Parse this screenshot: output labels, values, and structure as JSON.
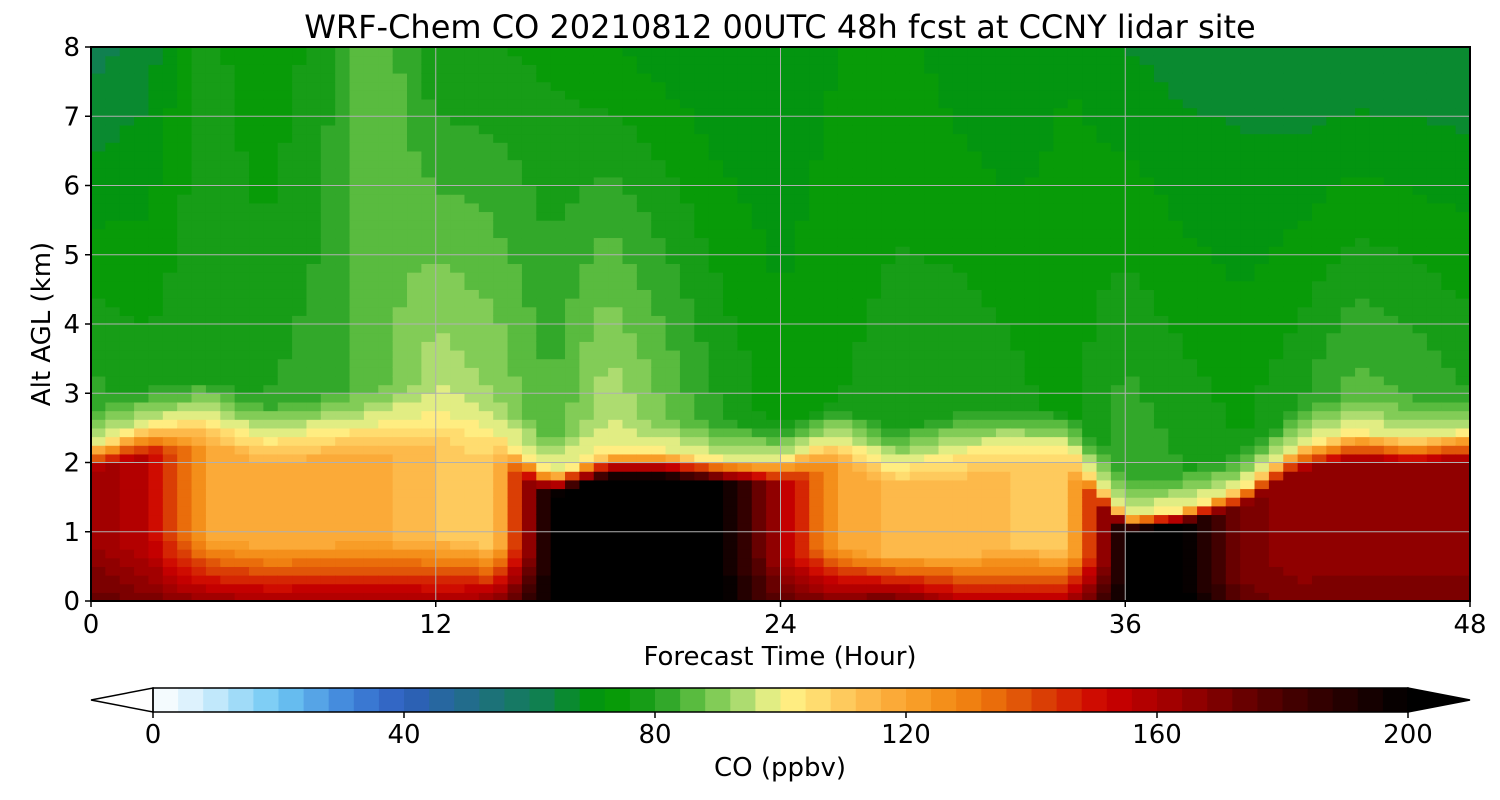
{
  "chart_data": {
    "type": "heatmap",
    "title": "WRF-Chem CO  20210812 00UTC 48h fcst at CCNY lidar site",
    "xlabel": "Forecast Time (Hour)",
    "ylabel": "Alt AGL (km)",
    "xlim": [
      0,
      48
    ],
    "ylim": [
      0,
      8
    ],
    "xticks": [
      "0",
      "12",
      "24",
      "36",
      "48"
    ],
    "yticks": [
      "0",
      "1",
      "2",
      "3",
      "4",
      "5",
      "6",
      "7",
      "8"
    ],
    "grid": true,
    "x_hours": [
      0,
      2,
      4,
      6,
      8,
      10,
      12,
      14,
      16,
      18,
      20,
      22,
      24,
      26,
      28,
      30,
      32,
      34,
      36,
      38,
      40,
      42,
      44,
      46,
      48
    ],
    "y_km": [
      0,
      0.25,
      0.5,
      0.75,
      1,
      1.25,
      1.5,
      1.75,
      2,
      2.25,
      2.5,
      3,
      3.5,
      4,
      4.5,
      5,
      5.5,
      6,
      6.5,
      7,
      7.5,
      8
    ],
    "profile": {
      "pbl_top_km": [
        2.2,
        2.5,
        2.6,
        2.3,
        2.4,
        2.5,
        2.6,
        2.4,
        1.8,
        2.1,
        2.1,
        2.0,
        2.0,
        2.3,
        1.9,
        2.1,
        2.2,
        2.2,
        1.2,
        1.3,
        1.6,
        2.2,
        2.4,
        2.3,
        2.4
      ],
      "pbl_co_ppbv": [
        165,
        155,
        120,
        118,
        118,
        118,
        112,
        108,
        200,
        200,
        200,
        200,
        160,
        120,
        115,
        112,
        112,
        110,
        200,
        200,
        170,
        165,
        165,
        165,
        165
      ],
      "surface_co_ppbv": [
        175,
        170,
        165,
        162,
        162,
        162,
        162,
        165,
        200,
        205,
        205,
        200,
        175,
        170,
        175,
        160,
        158,
        160,
        200,
        205,
        175,
        170,
        170,
        170,
        170
      ],
      "free_trop_low_ppbv": [
        82,
        78,
        80,
        80,
        82,
        86,
        95,
        92,
        85,
        96,
        88,
        80,
        74,
        76,
        78,
        80,
        78,
        74,
        84,
        80,
        76,
        80,
        86,
        84,
        80
      ],
      "free_trop_high_ppbv": [
        62,
        66,
        78,
        72,
        78,
        88,
        76,
        76,
        75,
        72,
        70,
        68,
        68,
        72,
        74,
        70,
        68,
        72,
        68,
        66,
        66,
        64,
        64,
        64,
        64
      ]
    },
    "colorbar": {
      "label": "CO  (ppbv)",
      "ticks": [
        "0",
        "40",
        "80",
        "120",
        "160",
        "200"
      ],
      "min": 0,
      "max": 200,
      "step": 4,
      "extend": "both",
      "colors": [
        [
          0,
          "#ffffff"
        ],
        [
          8,
          "#d2eefc"
        ],
        [
          20,
          "#6ec8f4"
        ],
        [
          32,
          "#3d80d8"
        ],
        [
          40,
          "#2f5ebe"
        ],
        [
          52,
          "#1f6f82"
        ],
        [
          62,
          "#108050"
        ],
        [
          72,
          "#009a00"
        ],
        [
          80,
          "#1f9e1f"
        ],
        [
          88,
          "#6cc44a"
        ],
        [
          96,
          "#c2e47c"
        ],
        [
          100,
          "#fff58a"
        ],
        [
          108,
          "#ffd366"
        ],
        [
          116,
          "#fcb040"
        ],
        [
          124,
          "#f6961e"
        ],
        [
          132,
          "#ee780c"
        ],
        [
          140,
          "#dd4a06"
        ],
        [
          152,
          "#cc0000"
        ],
        [
          164,
          "#9a0000"
        ],
        [
          180,
          "#4a0000"
        ],
        [
          196,
          "#0d0000"
        ],
        [
          200,
          "#000000"
        ]
      ]
    }
  }
}
